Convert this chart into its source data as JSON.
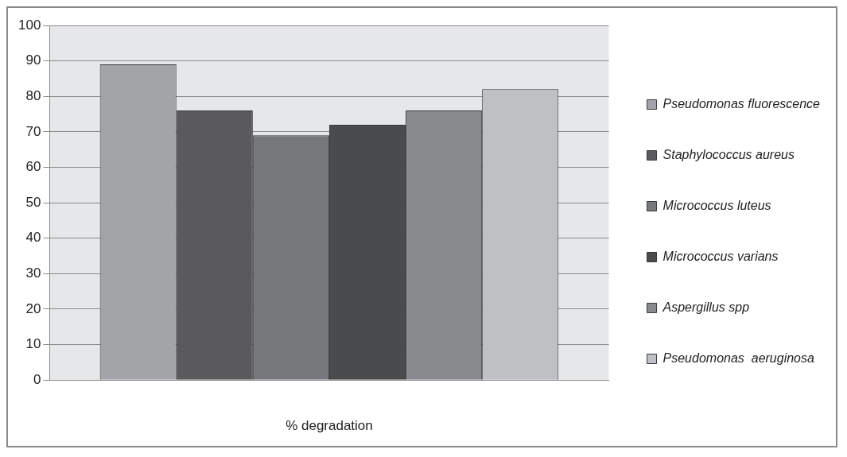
{
  "chart_data": {
    "type": "bar",
    "xlabel": "% degradation",
    "categories": [
      null
    ],
    "series": [
      {
        "name": "Pseudomonas fluorescence",
        "color": "#a3a4a8",
        "values": [
          89
        ]
      },
      {
        "name": "Staphylococcus aureus",
        "color": "#5a5a5c",
        "values": [
          76
        ]
      },
      {
        "name": "Micrococcus luteus",
        "color": "#77787c",
        "values": [
          69
        ]
      },
      {
        "name": "Micrococcus varians",
        "color": "#4a4b4d",
        "values": [
          72
        ]
      },
      {
        "name": "Aspergillus spp",
        "color": "#898a8e",
        "values": [
          76
        ]
      },
      {
        "name": "Pseudomonas  aeruginosa",
        "color": "#bfc0c4",
        "values": [
          82
        ]
      }
    ],
    "ylim": [
      0,
      100
    ],
    "yticks": [
      0,
      10,
      20,
      30,
      40,
      50,
      60,
      70,
      80,
      90,
      100
    ],
    "grid": "y",
    "legend": "right"
  }
}
